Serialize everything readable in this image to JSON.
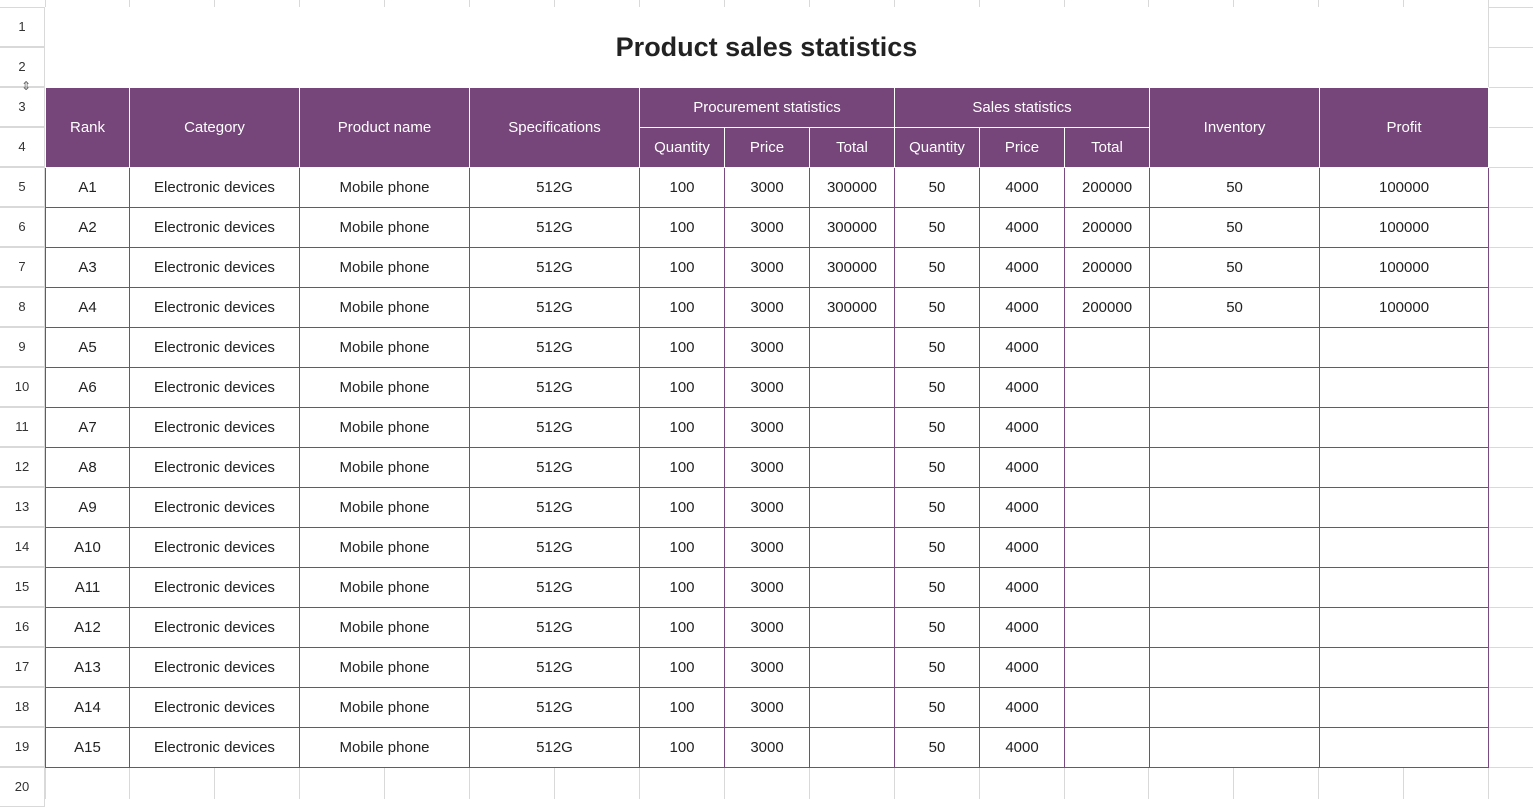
{
  "title": "Product sales statistics",
  "row_numbers": [
    "1",
    "2",
    "3",
    "4",
    "5",
    "6",
    "7",
    "8",
    "9",
    "10",
    "11",
    "12",
    "13",
    "14",
    "15",
    "16",
    "17",
    "18",
    "19",
    "20"
  ],
  "headers": {
    "rank": "Rank",
    "category": "Category",
    "product_name": "Product name",
    "specifications": "Specifications",
    "procurement": "Procurement statistics",
    "sales": "Sales statistics",
    "inventory": "Inventory",
    "profit": "Profit",
    "procurement_sub": [
      "Quantity",
      "Price",
      "Total"
    ],
    "sales_sub": [
      "Quantity",
      "Price",
      "Total"
    ]
  },
  "rows": [
    [
      "A1",
      "Electronic devices",
      "Mobile phone",
      "512G",
      "100",
      "3000",
      "300000",
      "50",
      "4000",
      "200000",
      "50",
      "100000"
    ],
    [
      "A2",
      "Electronic devices",
      "Mobile phone",
      "512G",
      "100",
      "3000",
      "300000",
      "50",
      "4000",
      "200000",
      "50",
      "100000"
    ],
    [
      "A3",
      "Electronic devices",
      "Mobile phone",
      "512G",
      "100",
      "3000",
      "300000",
      "50",
      "4000",
      "200000",
      "50",
      "100000"
    ],
    [
      "A4",
      "Electronic devices",
      "Mobile phone",
      "512G",
      "100",
      "3000",
      "300000",
      "50",
      "4000",
      "200000",
      "50",
      "100000"
    ],
    [
      "A5",
      "Electronic devices",
      "Mobile phone",
      "512G",
      "100",
      "3000",
      "",
      "50",
      "4000",
      "",
      "",
      ""
    ],
    [
      "A6",
      "Electronic devices",
      "Mobile phone",
      "512G",
      "100",
      "3000",
      "",
      "50",
      "4000",
      "",
      "",
      ""
    ],
    [
      "A7",
      "Electronic devices",
      "Mobile phone",
      "512G",
      "100",
      "3000",
      "",
      "50",
      "4000",
      "",
      "",
      ""
    ],
    [
      "A8",
      "Electronic devices",
      "Mobile phone",
      "512G",
      "100",
      "3000",
      "",
      "50",
      "4000",
      "",
      "",
      ""
    ],
    [
      "A9",
      "Electronic devices",
      "Mobile phone",
      "512G",
      "100",
      "3000",
      "",
      "50",
      "4000",
      "",
      "",
      ""
    ],
    [
      "A10",
      "Electronic devices",
      "Mobile phone",
      "512G",
      "100",
      "3000",
      "",
      "50",
      "4000",
      "",
      "",
      ""
    ],
    [
      "A11",
      "Electronic devices",
      "Mobile phone",
      "512G",
      "100",
      "3000",
      "",
      "50",
      "4000",
      "",
      "",
      ""
    ],
    [
      "A12",
      "Electronic devices",
      "Mobile phone",
      "512G",
      "100",
      "3000",
      "",
      "50",
      "4000",
      "",
      "",
      ""
    ],
    [
      "A13",
      "Electronic devices",
      "Mobile phone",
      "512G",
      "100",
      "3000",
      "",
      "50",
      "4000",
      "",
      "",
      ""
    ],
    [
      "A14",
      "Electronic devices",
      "Mobile phone",
      "512G",
      "100",
      "3000",
      "",
      "50",
      "4000",
      "",
      "",
      ""
    ],
    [
      "A15",
      "Electronic devices",
      "Mobile phone",
      "512G",
      "100",
      "3000",
      "",
      "50",
      "4000",
      "",
      "",
      ""
    ]
  ],
  "icons": {
    "row_resize": "row-resize-icon"
  },
  "colors": {
    "header_bg": "#76457a",
    "table_border": "#7b4a82",
    "grid_line": "#d9d9d9"
  }
}
